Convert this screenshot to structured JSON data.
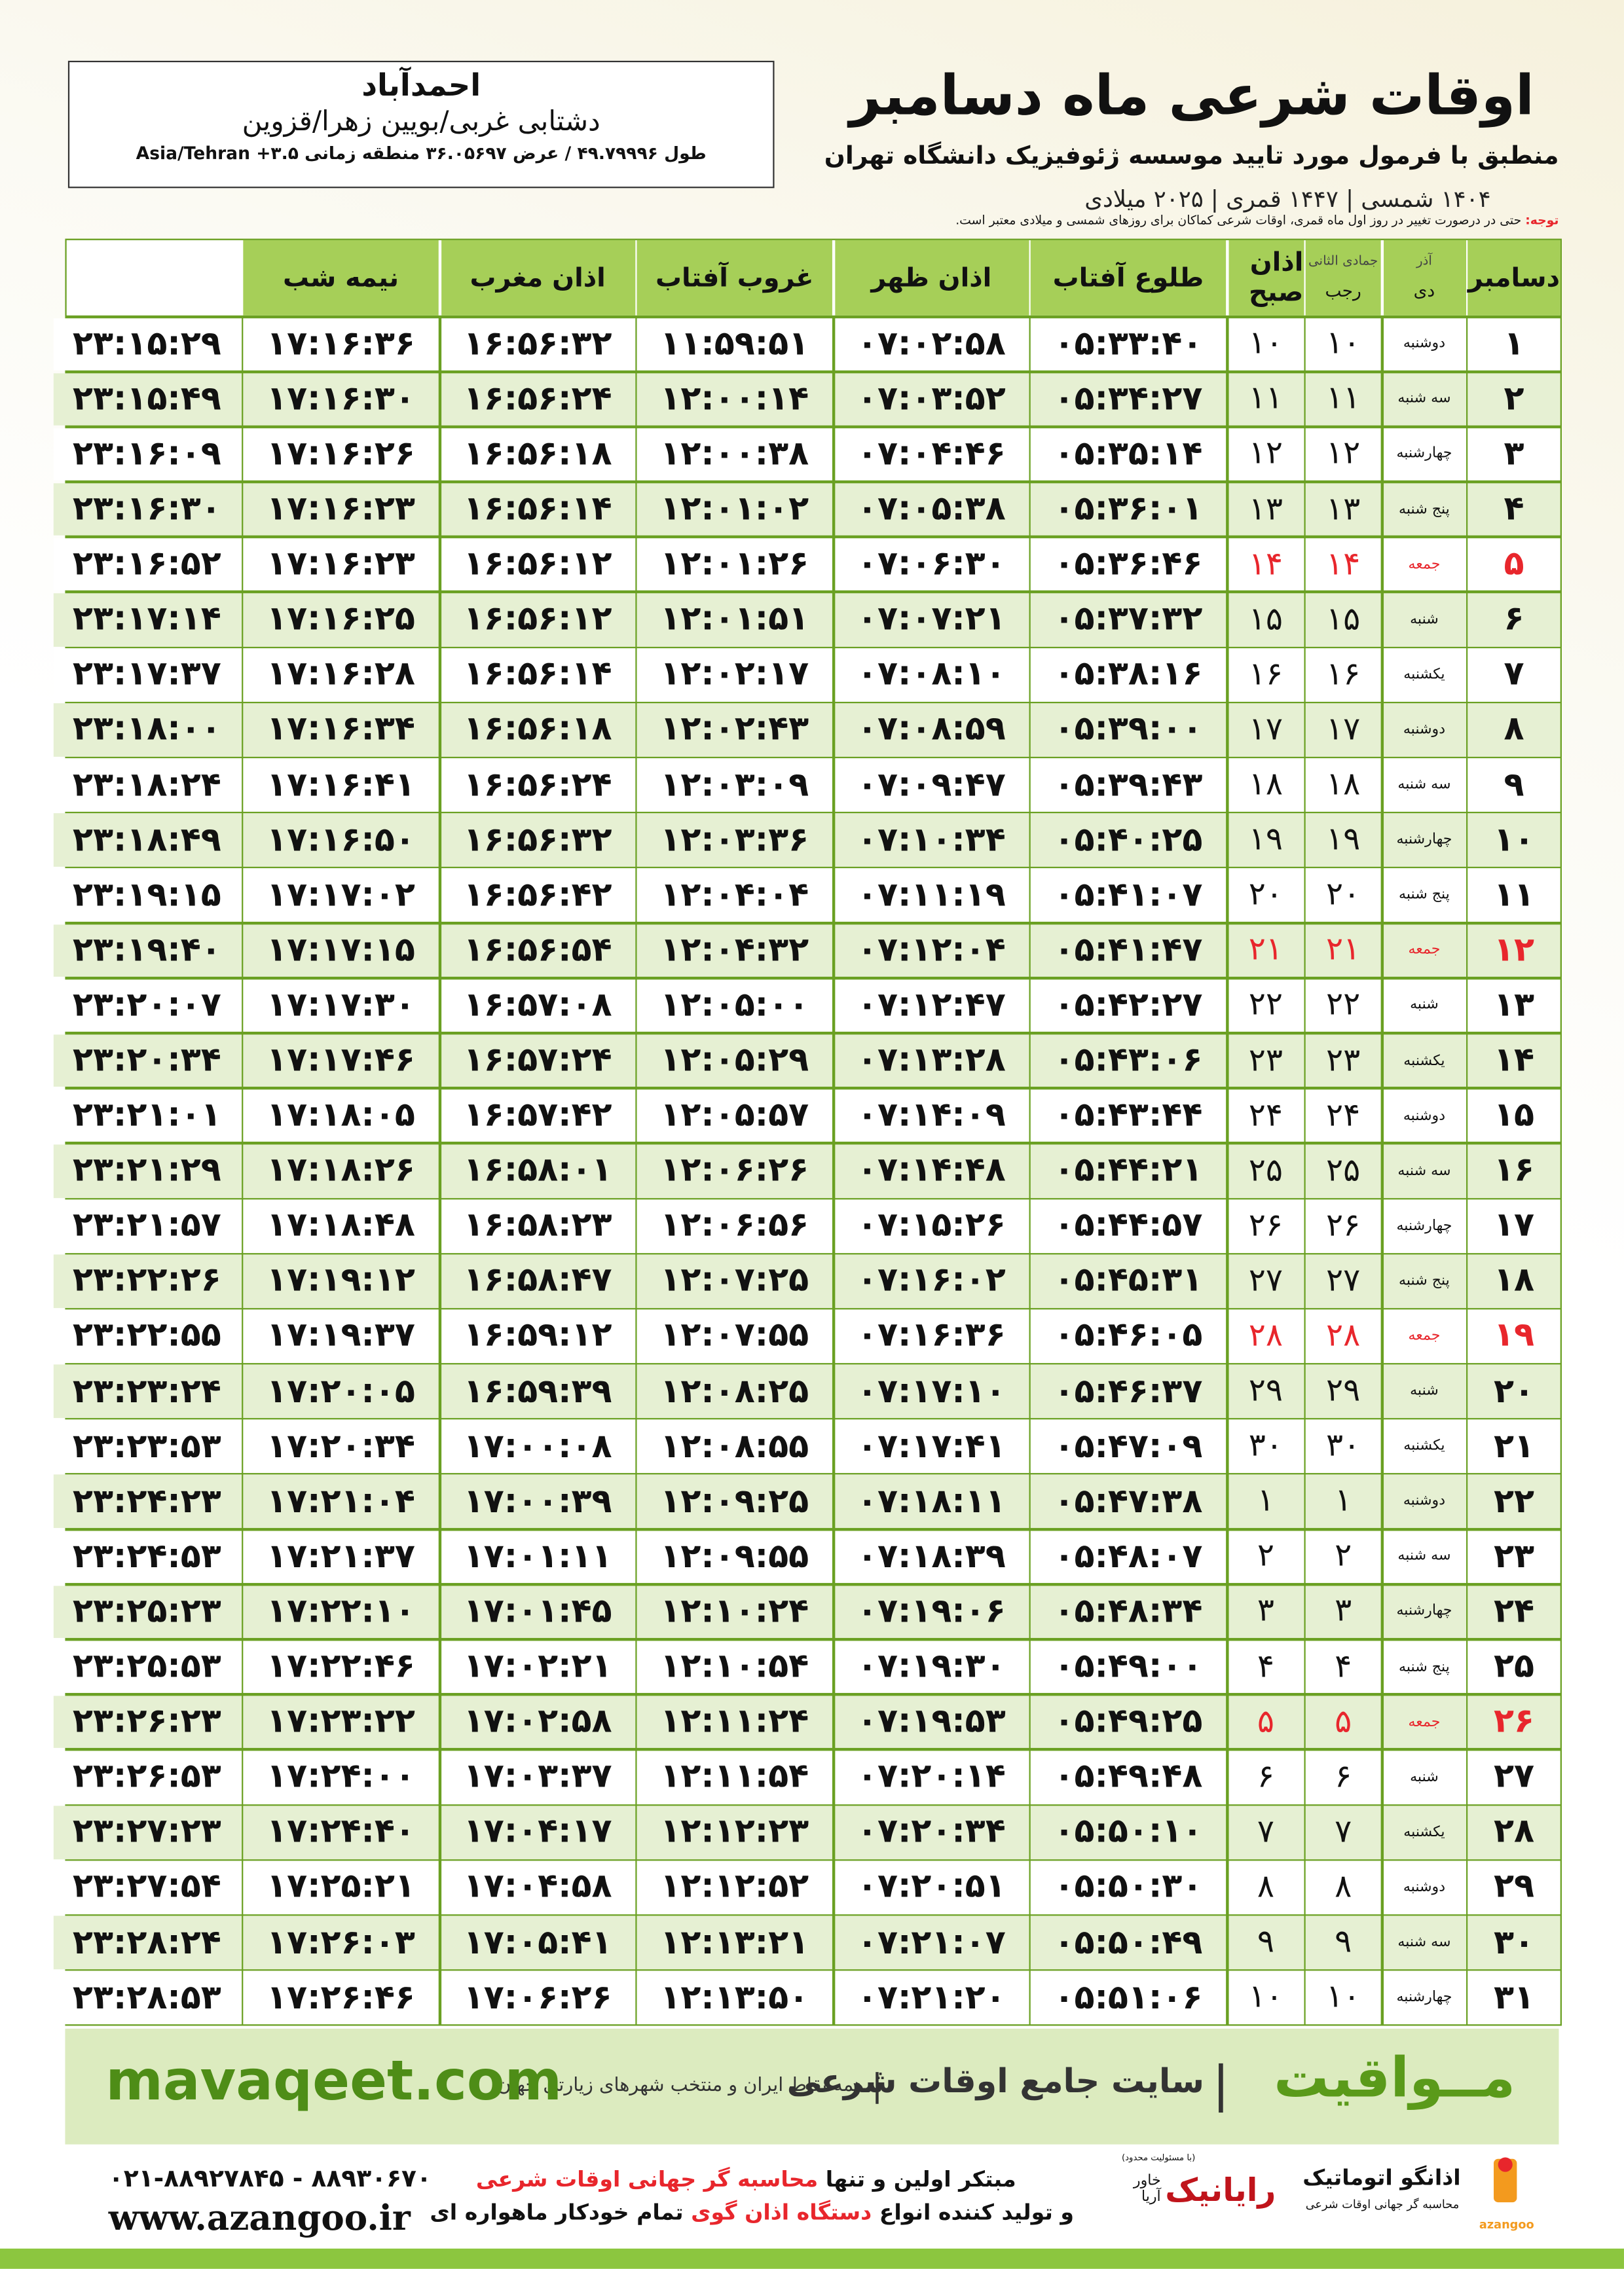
{
  "header": {
    "title": "اوقات شرعی ماه دسامبر",
    "subtitle": "منطبق با فرمول مورد تایید موسسه ژئوفیزیک دانشگاه تهران",
    "date_line": "۱۴۰۴ شمسی | ۱۴۴۷ قمری | ۲۰۲۵ میلادی"
  },
  "location": {
    "name": "احمدآباد",
    "region": "دشتابی غربی/بویین زهرا/قزوین",
    "coords": "طول ۴۹.۷۹۹۹۶ / عرض ۳۶.۰۵۶۹۷ منطقه زمانی ۳.۵+ Asia/Tehran"
  },
  "note": {
    "label": "توجه:",
    "text": "حتی در درصورت تغییر در روز اول ماه قمری، اوقات شرعی کماکان برای روزهای شمسی و میلادی معتبر است."
  },
  "table": {
    "header": {
      "month": "دسامبر",
      "prev_shamsi": "آذر",
      "prev_qamari": "جمادی الثانی",
      "shamsi": "دی",
      "qamari": "رجب",
      "columns": [
        "اذان صبح",
        "طلوع آفتاب",
        "اذان ظهر",
        "غروب آفتاب",
        "اذان مغرب",
        "نیمه شب"
      ]
    },
    "holiday_color": "#e8262c",
    "rows": [
      {
        "cells": [
          "۱",
          "دوشنبه",
          "۱۰",
          "۱۰",
          "۰۵:۳۳:۴۰",
          "۰۷:۰۲:۵۸",
          "۱۱:۵۹:۵۱",
          "۱۶:۵۶:۳۲",
          "۱۷:۱۶:۳۶",
          "۲۳:۱۵:۲۹"
        ]
      },
      {
        "cells": [
          "۲",
          "سه شنبه",
          "۱۱",
          "۱۱",
          "۰۵:۳۴:۲۷",
          "۰۷:۰۳:۵۲",
          "۱۲:۰۰:۱۴",
          "۱۶:۵۶:۲۴",
          "۱۷:۱۶:۳۰",
          "۲۳:۱۵:۴۹"
        ]
      },
      {
        "cells": [
          "۳",
          "چهارشنبه",
          "۱۲",
          "۱۲",
          "۰۵:۳۵:۱۴",
          "۰۷:۰۴:۴۶",
          "۱۲:۰۰:۳۸",
          "۱۶:۵۶:۱۸",
          "۱۷:۱۶:۲۶",
          "۲۳:۱۶:۰۹"
        ]
      },
      {
        "cells": [
          "۴",
          "پنج شنبه",
          "۱۳",
          "۱۳",
          "۰۵:۳۶:۰۱",
          "۰۷:۰۵:۳۸",
          "۱۲:۰۱:۰۲",
          "۱۶:۵۶:۱۴",
          "۱۷:۱۶:۲۳",
          "۲۳:۱۶:۳۰"
        ]
      },
      {
        "cells": [
          "۵",
          "جمعه",
          "۱۴",
          "۱۴",
          "۰۵:۳۶:۴۶",
          "۰۷:۰۶:۳۰",
          "۱۲:۰۱:۲۶",
          "۱۶:۵۶:۱۲",
          "۱۷:۱۶:۲۳",
          "۲۳:۱۶:۵۲"
        ],
        "holiday": true
      },
      {
        "cells": [
          "۶",
          "شنبه",
          "۱۵",
          "۱۵",
          "۰۵:۳۷:۳۲",
          "۰۷:۰۷:۲۱",
          "۱۲:۰۱:۵۱",
          "۱۶:۵۶:۱۲",
          "۱۷:۱۶:۲۵",
          "۲۳:۱۷:۱۴"
        ]
      },
      {
        "cells": [
          "۷",
          "یکشنبه",
          "۱۶",
          "۱۶",
          "۰۵:۳۸:۱۶",
          "۰۷:۰۸:۱۰",
          "۱۲:۰۲:۱۷",
          "۱۶:۵۶:۱۴",
          "۱۷:۱۶:۲۸",
          "۲۳:۱۷:۳۷"
        ]
      },
      {
        "cells": [
          "۸",
          "دوشنبه",
          "۱۷",
          "۱۷",
          "۰۵:۳۹:۰۰",
          "۰۷:۰۸:۵۹",
          "۱۲:۰۲:۴۳",
          "۱۶:۵۶:۱۸",
          "۱۷:۱۶:۳۴",
          "۲۳:۱۸:۰۰"
        ]
      },
      {
        "cells": [
          "۹",
          "سه شنبه",
          "۱۸",
          "۱۸",
          "۰۵:۳۹:۴۳",
          "۰۷:۰۹:۴۷",
          "۱۲:۰۳:۰۹",
          "۱۶:۵۶:۲۴",
          "۱۷:۱۶:۴۱",
          "۲۳:۱۸:۲۴"
        ]
      },
      {
        "cells": [
          "۱۰",
          "چهارشنبه",
          "۱۹",
          "۱۹",
          "۰۵:۴۰:۲۵",
          "۰۷:۱۰:۳۴",
          "۱۲:۰۳:۳۶",
          "۱۶:۵۶:۳۲",
          "۱۷:۱۶:۵۰",
          "۲۳:۱۸:۴۹"
        ]
      },
      {
        "cells": [
          "۱۱",
          "پنج شنبه",
          "۲۰",
          "۲۰",
          "۰۵:۴۱:۰۷",
          "۰۷:۱۱:۱۹",
          "۱۲:۰۴:۰۴",
          "۱۶:۵۶:۴۲",
          "۱۷:۱۷:۰۲",
          "۲۳:۱۹:۱۵"
        ]
      },
      {
        "cells": [
          "۱۲",
          "جمعه",
          "۲۱",
          "۲۱",
          "۰۵:۴۱:۴۷",
          "۰۷:۱۲:۰۴",
          "۱۲:۰۴:۳۲",
          "۱۶:۵۶:۵۴",
          "۱۷:۱۷:۱۵",
          "۲۳:۱۹:۴۰"
        ],
        "holiday": true
      },
      {
        "cells": [
          "۱۳",
          "شنبه",
          "۲۲",
          "۲۲",
          "۰۵:۴۲:۲۷",
          "۰۷:۱۲:۴۷",
          "۱۲:۰۵:۰۰",
          "۱۶:۵۷:۰۸",
          "۱۷:۱۷:۳۰",
          "۲۳:۲۰:۰۷"
        ]
      },
      {
        "cells": [
          "۱۴",
          "یکشنبه",
          "۲۳",
          "۲۳",
          "۰۵:۴۳:۰۶",
          "۰۷:۱۳:۲۸",
          "۱۲:۰۵:۲۹",
          "۱۶:۵۷:۲۴",
          "۱۷:۱۷:۴۶",
          "۲۳:۲۰:۳۴"
        ]
      },
      {
        "cells": [
          "۱۵",
          "دوشنبه",
          "۲۴",
          "۲۴",
          "۰۵:۴۳:۴۴",
          "۰۷:۱۴:۰۹",
          "۱۲:۰۵:۵۷",
          "۱۶:۵۷:۴۲",
          "۱۷:۱۸:۰۵",
          "۲۳:۲۱:۰۱"
        ]
      },
      {
        "cells": [
          "۱۶",
          "سه شنبه",
          "۲۵",
          "۲۵",
          "۰۵:۴۴:۲۱",
          "۰۷:۱۴:۴۸",
          "۱۲:۰۶:۲۶",
          "۱۶:۵۸:۰۱",
          "۱۷:۱۸:۲۶",
          "۲۳:۲۱:۲۹"
        ]
      },
      {
        "cells": [
          "۱۷",
          "چهارشنبه",
          "۲۶",
          "۲۶",
          "۰۵:۴۴:۵۷",
          "۰۷:۱۵:۲۶",
          "۱۲:۰۶:۵۶",
          "۱۶:۵۸:۲۳",
          "۱۷:۱۸:۴۸",
          "۲۳:۲۱:۵۷"
        ]
      },
      {
        "cells": [
          "۱۸",
          "پنج شنبه",
          "۲۷",
          "۲۷",
          "۰۵:۴۵:۳۱",
          "۰۷:۱۶:۰۲",
          "۱۲:۰۷:۲۵",
          "۱۶:۵۸:۴۷",
          "۱۷:۱۹:۱۲",
          "۲۳:۲۲:۲۶"
        ]
      },
      {
        "cells": [
          "۱۹",
          "جمعه",
          "۲۸",
          "۲۸",
          "۰۵:۴۶:۰۵",
          "۰۷:۱۶:۳۶",
          "۱۲:۰۷:۵۵",
          "۱۶:۵۹:۱۲",
          "۱۷:۱۹:۳۷",
          "۲۳:۲۲:۵۵"
        ],
        "holiday": true
      },
      {
        "cells": [
          "۲۰",
          "شنبه",
          "۲۹",
          "۲۹",
          "۰۵:۴۶:۳۷",
          "۰۷:۱۷:۱۰",
          "۱۲:۰۸:۲۵",
          "۱۶:۵۹:۳۹",
          "۱۷:۲۰:۰۵",
          "۲۳:۲۳:۲۴"
        ]
      },
      {
        "cells": [
          "۲۱",
          "یکشنبه",
          "۳۰",
          "۳۰",
          "۰۵:۴۷:۰۹",
          "۰۷:۱۷:۴۱",
          "۱۲:۰۸:۵۵",
          "۱۷:۰۰:۰۸",
          "۱۷:۲۰:۳۴",
          "۲۳:۲۳:۵۳"
        ]
      },
      {
        "cells": [
          "۲۲",
          "دوشنبه",
          "۱",
          "۱",
          "۰۵:۴۷:۳۸",
          "۰۷:۱۸:۱۱",
          "۱۲:۰۹:۲۵",
          "۱۷:۰۰:۳۹",
          "۱۷:۲۱:۰۴",
          "۲۳:۲۴:۲۳"
        ]
      },
      {
        "cells": [
          "۲۳",
          "سه شنبه",
          "۲",
          "۲",
          "۰۵:۴۸:۰۷",
          "۰۷:۱۸:۳۹",
          "۱۲:۰۹:۵۵",
          "۱۷:۰۱:۱۱",
          "۱۷:۲۱:۳۷",
          "۲۳:۲۴:۵۳"
        ]
      },
      {
        "cells": [
          "۲۴",
          "چهارشنبه",
          "۳",
          "۳",
          "۰۵:۴۸:۳۴",
          "۰۷:۱۹:۰۶",
          "۱۲:۱۰:۲۴",
          "۱۷:۰۱:۴۵",
          "۱۷:۲۲:۱۰",
          "۲۳:۲۵:۲۳"
        ]
      },
      {
        "cells": [
          "۲۵",
          "پنج شنبه",
          "۴",
          "۴",
          "۰۵:۴۹:۰۰",
          "۰۷:۱۹:۳۰",
          "۱۲:۱۰:۵۴",
          "۱۷:۰۲:۲۱",
          "۱۷:۲۲:۴۶",
          "۲۳:۲۵:۵۳"
        ]
      },
      {
        "cells": [
          "۲۶",
          "جمعه",
          "۵",
          "۵",
          "۰۵:۴۹:۲۵",
          "۰۷:۱۹:۵۳",
          "۱۲:۱۱:۲۴",
          "۱۷:۰۲:۵۸",
          "۱۷:۲۳:۲۲",
          "۲۳:۲۶:۲۳"
        ],
        "holiday": true
      },
      {
        "cells": [
          "۲۷",
          "شنبه",
          "۶",
          "۶",
          "۰۵:۴۹:۴۸",
          "۰۷:۲۰:۱۴",
          "۱۲:۱۱:۵۴",
          "۱۷:۰۳:۳۷",
          "۱۷:۲۴:۰۰",
          "۲۳:۲۶:۵۳"
        ]
      },
      {
        "cells": [
          "۲۸",
          "یکشنبه",
          "۷",
          "۷",
          "۰۵:۵۰:۱۰",
          "۰۷:۲۰:۳۴",
          "۱۲:۱۲:۲۳",
          "۱۷:۰۴:۱۷",
          "۱۷:۲۴:۴۰",
          "۲۳:۲۷:۲۳"
        ]
      },
      {
        "cells": [
          "۲۹",
          "دوشنبه",
          "۸",
          "۸",
          "۰۵:۵۰:۳۰",
          "۰۷:۲۰:۵۱",
          "۱۲:۱۲:۵۲",
          "۱۷:۰۴:۵۸",
          "۱۷:۲۵:۲۱",
          "۲۳:۲۷:۵۴"
        ]
      },
      {
        "cells": [
          "۳۰",
          "سه شنبه",
          "۹",
          "۹",
          "۰۵:۵۰:۴۹",
          "۰۷:۲۱:۰۷",
          "۱۲:۱۳:۲۱",
          "۱۷:۰۵:۴۱",
          "۱۷:۲۶:۰۳",
          "۲۳:۲۸:۲۴"
        ]
      },
      {
        "cells": [
          "۳۱",
          "چهارشنبه",
          "۱۰",
          "۱۰",
          "۰۵:۵۱:۰۶",
          "۰۷:۲۱:۲۰",
          "۱۲:۱۳:۵۰",
          "۱۷:۰۶:۲۶",
          "۱۷:۲۶:۴۶",
          "۲۳:۲۸:۵۳"
        ]
      }
    ]
  },
  "banner": {
    "brand": "مــواقیت",
    "slogan": "سایت جامع اوقات شرعی",
    "tagline": "همه نقاط ایران و منتخب شهرهای زیارتی جهان",
    "url": "mavaqeet.com"
  },
  "footer": {
    "phone": "۰۲۱-۸۸۹۲۷۸۴۵ - ۸۸۹۳۰۶۷۰",
    "website": "www.azangoo.ir",
    "line1_a": "مبتکر اولین و تنها",
    "line1_b": "محاسبه گر جهانی اوقات شرعی",
    "line2_a": "و تولید کننده انواع",
    "line2_b": "دستگاه اذان گوی",
    "line2_c": "تمام خودکار ماهواره ای",
    "logo_rayanik": "رایانیک",
    "logo_rayanik_note": "(با مسئولیت محدود)",
    "logo_khavar": "خاور آریا",
    "logo_azangoo": "اذانگو اتوماتیک",
    "logo_azangoo_sub": "محاسبه گر جهانی اوقات شرعی",
    "logo_azangoo_en": "azangoo"
  }
}
